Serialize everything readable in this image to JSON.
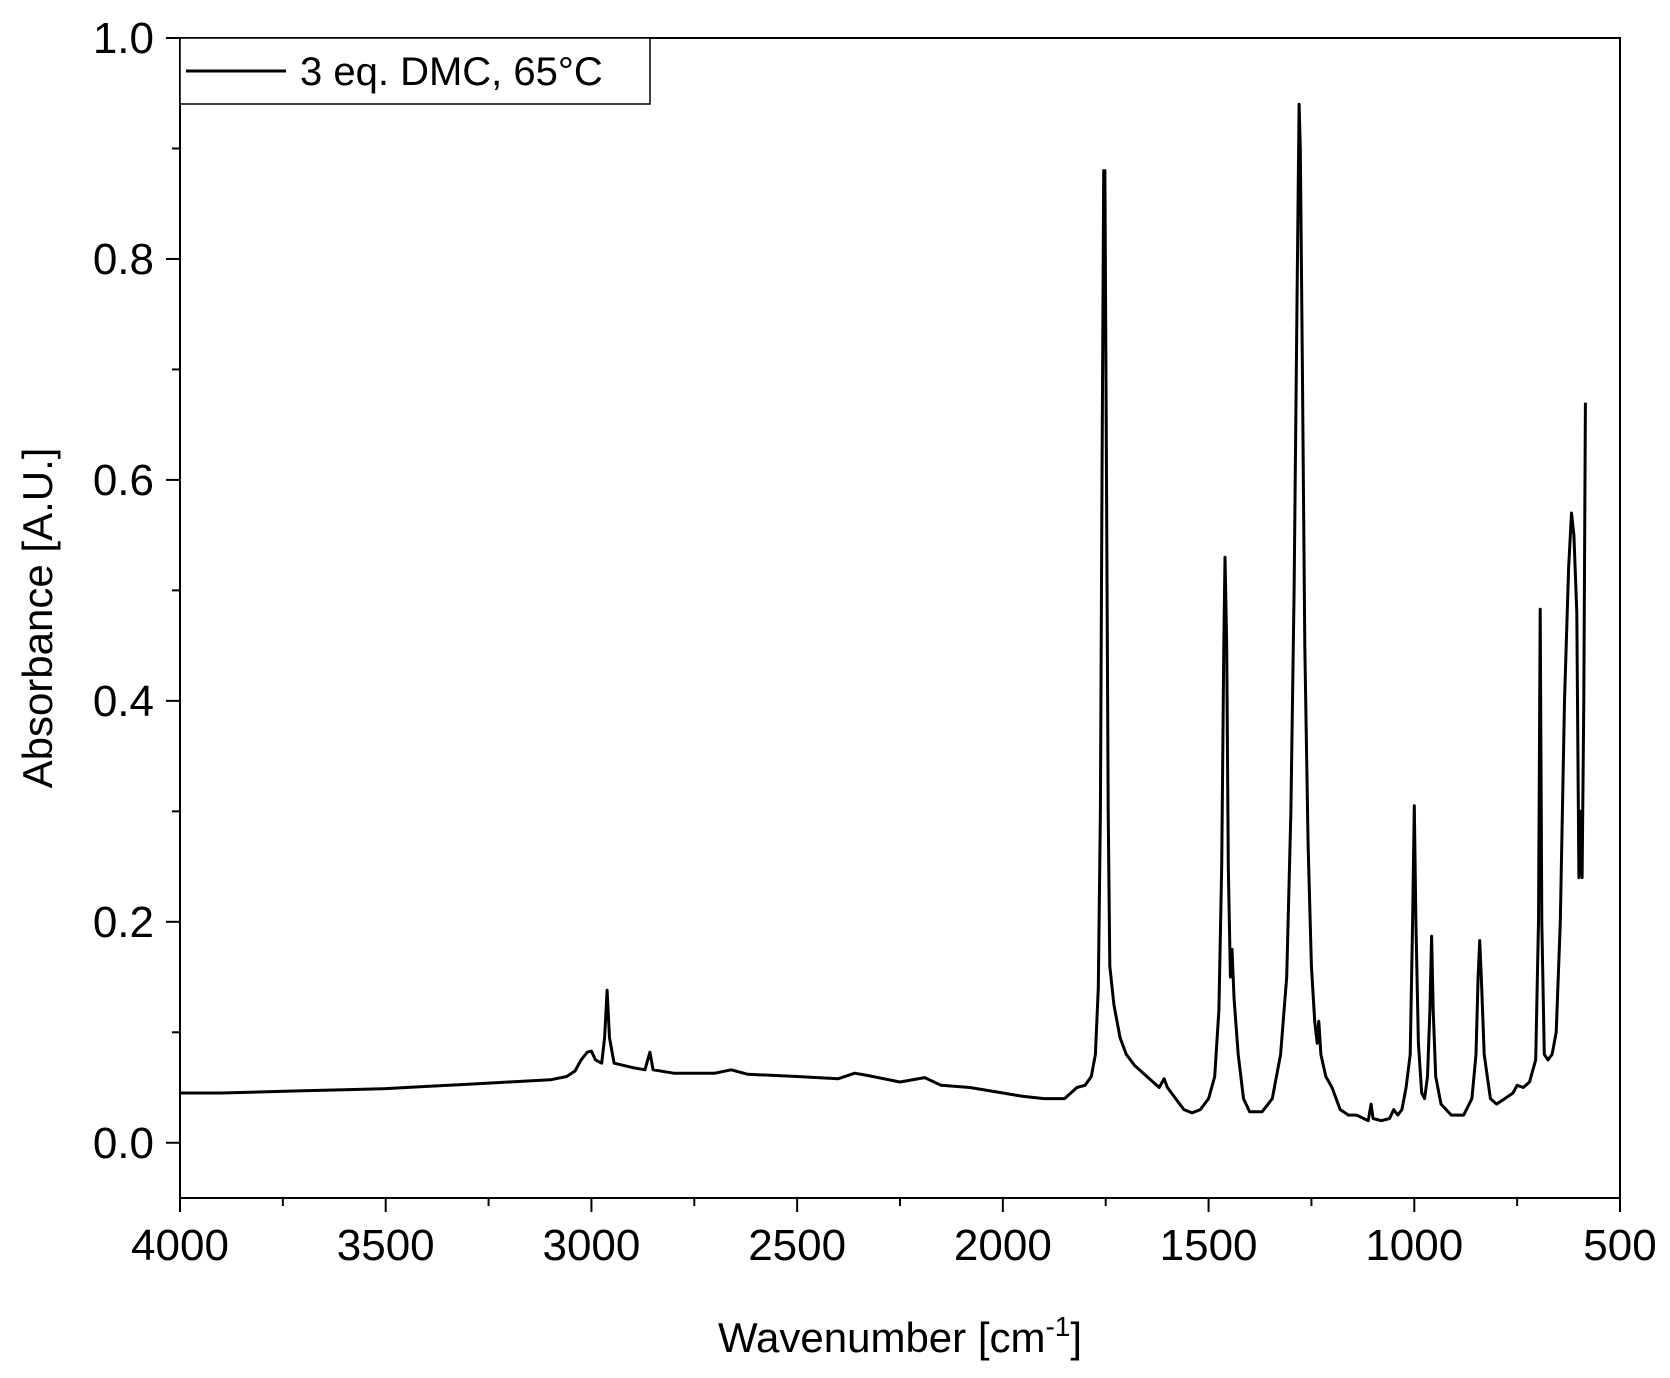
{
  "chart_data": {
    "type": "line",
    "xlabel": "Wavenumber [cm",
    "xlabel_sup": "-1",
    "xlabel_suffix": "]",
    "ylabel": "Absorbance [A.U.]",
    "xlim": [
      4000,
      500
    ],
    "ylim": [
      -0.05,
      1.0
    ],
    "x_reversed": true,
    "x_ticks": [
      4000,
      3500,
      3000,
      2500,
      2000,
      1500,
      1000,
      500
    ],
    "x_tick_labels": [
      "4000",
      "3500",
      "3000",
      "2500",
      "2000",
      "1500",
      "1000",
      "500"
    ],
    "y_ticks": [
      0.0,
      0.2,
      0.4,
      0.6,
      0.8,
      1.0
    ],
    "y_tick_labels": [
      "0.0",
      "0.2",
      "0.4",
      "0.6",
      "0.8",
      "1.0"
    ],
    "grid": false,
    "legend_position": "top-left",
    "series": [
      {
        "name": "3 eq. DMC, 65°C",
        "color": "#000000",
        "points": [
          [
            4000,
            0.045
          ],
          [
            3900,
            0.045
          ],
          [
            3800,
            0.046
          ],
          [
            3700,
            0.047
          ],
          [
            3600,
            0.048
          ],
          [
            3500,
            0.049
          ],
          [
            3400,
            0.051
          ],
          [
            3300,
            0.053
          ],
          [
            3200,
            0.055
          ],
          [
            3100,
            0.057
          ],
          [
            3060,
            0.06
          ],
          [
            3040,
            0.065
          ],
          [
            3025,
            0.075
          ],
          [
            3010,
            0.082
          ],
          [
            3000,
            0.083
          ],
          [
            2990,
            0.075
          ],
          [
            2975,
            0.072
          ],
          [
            2968,
            0.095
          ],
          [
            2962,
            0.138
          ],
          [
            2956,
            0.095
          ],
          [
            2945,
            0.072
          ],
          [
            2900,
            0.068
          ],
          [
            2870,
            0.066
          ],
          [
            2858,
            0.082
          ],
          [
            2850,
            0.066
          ],
          [
            2800,
            0.063
          ],
          [
            2750,
            0.063
          ],
          [
            2700,
            0.063
          ],
          [
            2660,
            0.066
          ],
          [
            2620,
            0.062
          ],
          [
            2500,
            0.06
          ],
          [
            2400,
            0.058
          ],
          [
            2360,
            0.063
          ],
          [
            2330,
            0.061
          ],
          [
            2250,
            0.055
          ],
          [
            2190,
            0.059
          ],
          [
            2150,
            0.052
          ],
          [
            2080,
            0.05
          ],
          [
            2000,
            0.045
          ],
          [
            1950,
            0.042
          ],
          [
            1900,
            0.04
          ],
          [
            1850,
            0.04
          ],
          [
            1820,
            0.05
          ],
          [
            1800,
            0.052
          ],
          [
            1785,
            0.06
          ],
          [
            1775,
            0.08
          ],
          [
            1768,
            0.14
          ],
          [
            1763,
            0.3
          ],
          [
            1759,
            0.6
          ],
          [
            1755,
            0.88
          ],
          [
            1752,
            0.88
          ],
          [
            1748,
            0.6
          ],
          [
            1744,
            0.3
          ],
          [
            1740,
            0.16
          ],
          [
            1730,
            0.125
          ],
          [
            1715,
            0.095
          ],
          [
            1700,
            0.08
          ],
          [
            1680,
            0.07
          ],
          [
            1650,
            0.06
          ],
          [
            1620,
            0.05
          ],
          [
            1608,
            0.058
          ],
          [
            1600,
            0.05
          ],
          [
            1580,
            0.04
          ],
          [
            1560,
            0.03
          ],
          [
            1540,
            0.027
          ],
          [
            1520,
            0.03
          ],
          [
            1500,
            0.04
          ],
          [
            1485,
            0.06
          ],
          [
            1475,
            0.12
          ],
          [
            1468,
            0.25
          ],
          [
            1463,
            0.45
          ],
          [
            1460,
            0.53
          ],
          [
            1456,
            0.45
          ],
          [
            1452,
            0.25
          ],
          [
            1447,
            0.15
          ],
          [
            1443,
            0.175
          ],
          [
            1438,
            0.13
          ],
          [
            1428,
            0.08
          ],
          [
            1415,
            0.04
          ],
          [
            1400,
            0.028
          ],
          [
            1370,
            0.028
          ],
          [
            1345,
            0.04
          ],
          [
            1325,
            0.08
          ],
          [
            1310,
            0.15
          ],
          [
            1300,
            0.3
          ],
          [
            1292,
            0.5
          ],
          [
            1285,
            0.76
          ],
          [
            1280,
            0.94
          ],
          [
            1277,
            0.9
          ],
          [
            1272,
            0.7
          ],
          [
            1266,
            0.45
          ],
          [
            1258,
            0.27
          ],
          [
            1250,
            0.16
          ],
          [
            1242,
            0.11
          ],
          [
            1236,
            0.09
          ],
          [
            1232,
            0.11
          ],
          [
            1227,
            0.08
          ],
          [
            1215,
            0.06
          ],
          [
            1200,
            0.05
          ],
          [
            1180,
            0.03
          ],
          [
            1160,
            0.025
          ],
          [
            1140,
            0.025
          ],
          [
            1112,
            0.02
          ],
          [
            1105,
            0.035
          ],
          [
            1100,
            0.022
          ],
          [
            1080,
            0.02
          ],
          [
            1060,
            0.022
          ],
          [
            1050,
            0.03
          ],
          [
            1040,
            0.025
          ],
          [
            1030,
            0.03
          ],
          [
            1020,
            0.05
          ],
          [
            1010,
            0.08
          ],
          [
            1004,
            0.2
          ],
          [
            1000,
            0.305
          ],
          [
            996,
            0.2
          ],
          [
            990,
            0.09
          ],
          [
            982,
            0.045
          ],
          [
            975,
            0.04
          ],
          [
            968,
            0.06
          ],
          [
            962,
            0.12
          ],
          [
            958,
            0.187
          ],
          [
            954,
            0.12
          ],
          [
            948,
            0.06
          ],
          [
            935,
            0.035
          ],
          [
            910,
            0.025
          ],
          [
            880,
            0.025
          ],
          [
            860,
            0.04
          ],
          [
            850,
            0.08
          ],
          [
            845,
            0.15
          ],
          [
            841,
            0.183
          ],
          [
            837,
            0.15
          ],
          [
            830,
            0.08
          ],
          [
            815,
            0.04
          ],
          [
            800,
            0.035
          ],
          [
            780,
            0.04
          ],
          [
            760,
            0.045
          ],
          [
            750,
            0.052
          ],
          [
            735,
            0.05
          ],
          [
            720,
            0.055
          ],
          [
            705,
            0.075
          ],
          [
            698,
            0.2
          ],
          [
            694,
            0.483
          ],
          [
            690,
            0.2
          ],
          [
            684,
            0.08
          ],
          [
            675,
            0.075
          ],
          [
            665,
            0.08
          ],
          [
            655,
            0.1
          ],
          [
            645,
            0.2
          ],
          [
            635,
            0.4
          ],
          [
            625,
            0.52
          ],
          [
            618,
            0.57
          ],
          [
            612,
            0.55
          ],
          [
            605,
            0.48
          ],
          [
            600,
            0.24
          ],
          [
            596,
            0.3
          ],
          [
            592,
            0.24
          ],
          [
            588,
            0.4
          ],
          [
            584,
            0.67
          ]
        ]
      }
    ]
  }
}
